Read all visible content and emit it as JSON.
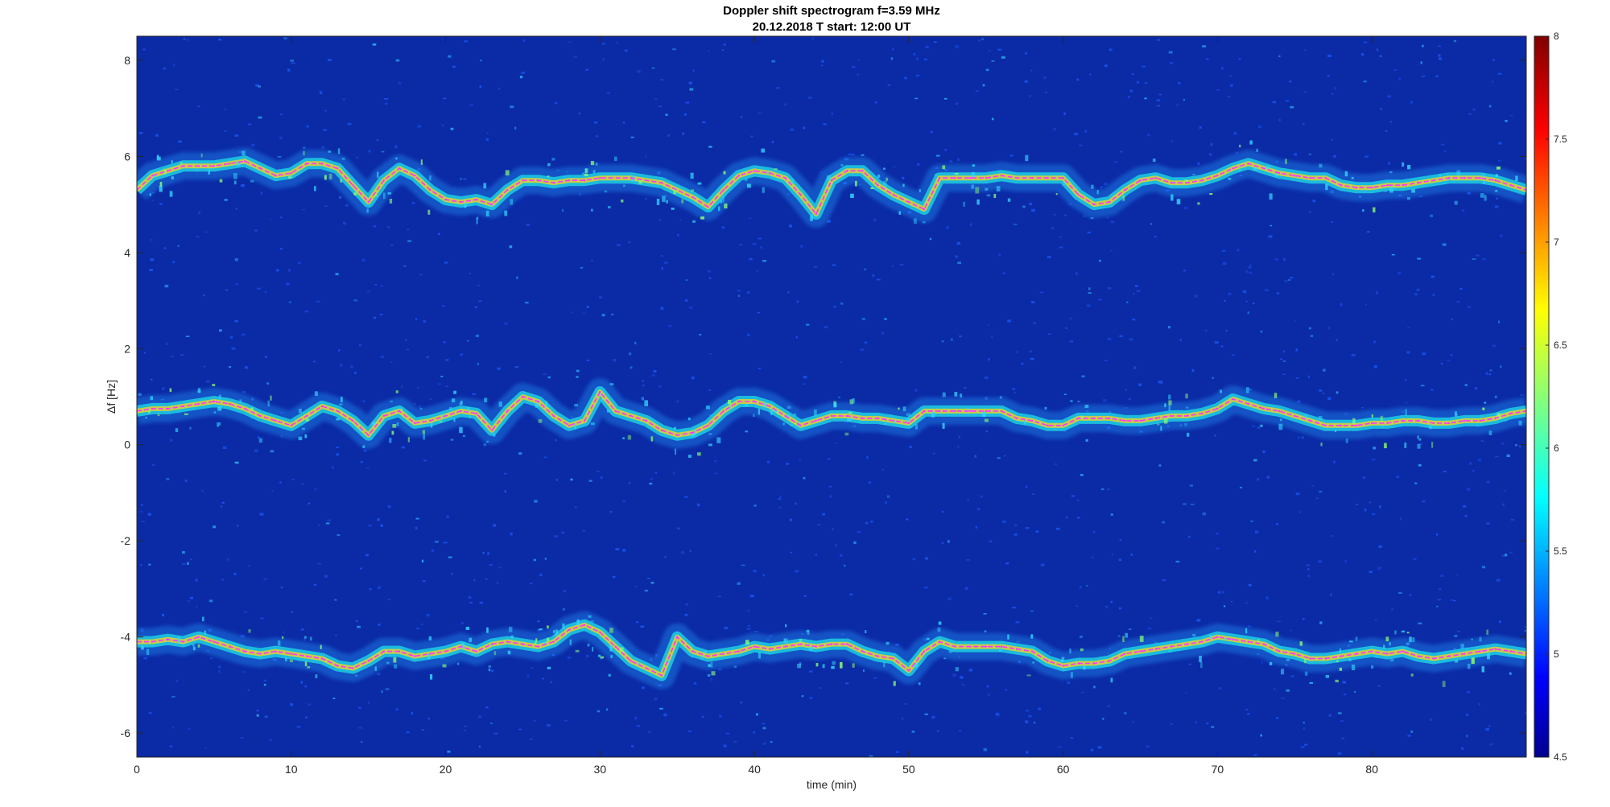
{
  "chart_data": {
    "type": "heatmap",
    "title": "Doppler shift spectrogram f=3.59 MHz",
    "subtitle": "20.12.2018   T start: 12:00 UT",
    "xlabel": "time (min)",
    "ylabel": "Δf [Hz]",
    "xlim": [
      0,
      90
    ],
    "ylim": [
      -6.5,
      8.5
    ],
    "x_ticks": [
      0,
      10,
      20,
      30,
      40,
      50,
      60,
      70,
      80
    ],
    "y_ticks": [
      -6,
      -4,
      -2,
      0,
      2,
      4,
      6,
      8
    ],
    "colorbar": {
      "colormap": "jet",
      "range": [
        4.5,
        8
      ],
      "ticks": [
        "4.5",
        "5",
        "5.5",
        "6",
        "6.5",
        "7",
        "7.5",
        "8"
      ]
    },
    "background_color": "#0b2aa6",
    "trace_color": "#ff33ff",
    "series": [
      {
        "band": "upper",
        "x": [
          0,
          1,
          2,
          3,
          4,
          5,
          6,
          7,
          8,
          9,
          10,
          11,
          12,
          13,
          14,
          15,
          16,
          17,
          18,
          19,
          20,
          21,
          22,
          23,
          24,
          25,
          26,
          27,
          28,
          29,
          30,
          32,
          34,
          36,
          37,
          38,
          39,
          40,
          41,
          42,
          43,
          44,
          45,
          46,
          47,
          48,
          49,
          50,
          51,
          52,
          53,
          54,
          55,
          56,
          57,
          58,
          59,
          60,
          61,
          62,
          63,
          64,
          65,
          66,
          67,
          68,
          69,
          70,
          71,
          72,
          73,
          74,
          75,
          76,
          77,
          78,
          79,
          80,
          81,
          82,
          83,
          84,
          85,
          86,
          87,
          88,
          89,
          90
        ],
        "y": [
          5.3,
          5.6,
          5.7,
          5.8,
          5.8,
          5.8,
          5.85,
          5.9,
          5.75,
          5.6,
          5.65,
          5.85,
          5.85,
          5.75,
          5.4,
          5.05,
          5.5,
          5.75,
          5.6,
          5.3,
          5.1,
          5.05,
          5.1,
          5.0,
          5.3,
          5.5,
          5.5,
          5.45,
          5.5,
          5.5,
          5.55,
          5.55,
          5.45,
          5.15,
          4.95,
          5.3,
          5.6,
          5.7,
          5.65,
          5.55,
          5.2,
          4.8,
          5.5,
          5.7,
          5.7,
          5.4,
          5.2,
          5.05,
          4.9,
          5.55,
          5.55,
          5.55,
          5.55,
          5.6,
          5.55,
          5.55,
          5.55,
          5.55,
          5.2,
          5.0,
          5.05,
          5.3,
          5.5,
          5.55,
          5.45,
          5.45,
          5.5,
          5.6,
          5.75,
          5.85,
          5.75,
          5.65,
          5.6,
          5.55,
          5.55,
          5.4,
          5.35,
          5.35,
          5.4,
          5.4,
          5.45,
          5.5,
          5.55,
          5.55,
          5.55,
          5.5,
          5.4,
          5.3
        ]
      },
      {
        "band": "middle",
        "x": [
          0,
          1,
          2,
          3,
          4,
          5,
          6,
          7,
          8,
          9,
          10,
          11,
          12,
          13,
          14,
          15,
          16,
          17,
          18,
          19,
          20,
          21,
          22,
          23,
          24,
          25,
          26,
          27,
          28,
          29,
          30,
          31,
          32,
          33,
          34,
          35,
          36,
          37,
          38,
          39,
          40,
          41,
          42,
          43,
          44,
          45,
          46,
          47,
          48,
          49,
          50,
          51,
          52,
          53,
          54,
          55,
          56,
          57,
          58,
          59,
          60,
          61,
          62,
          63,
          64,
          65,
          66,
          67,
          68,
          69,
          70,
          71,
          72,
          73,
          74,
          75,
          76,
          77,
          78,
          79,
          80,
          81,
          82,
          83,
          84,
          85,
          86,
          87,
          88,
          89,
          90
        ],
        "y": [
          0.7,
          0.75,
          0.75,
          0.8,
          0.85,
          0.9,
          0.85,
          0.75,
          0.6,
          0.5,
          0.4,
          0.6,
          0.8,
          0.7,
          0.5,
          0.2,
          0.6,
          0.7,
          0.45,
          0.5,
          0.6,
          0.7,
          0.65,
          0.3,
          0.7,
          1.0,
          0.9,
          0.6,
          0.4,
          0.5,
          1.1,
          0.7,
          0.6,
          0.5,
          0.3,
          0.2,
          0.25,
          0.4,
          0.7,
          0.9,
          0.9,
          0.8,
          0.6,
          0.4,
          0.5,
          0.6,
          0.6,
          0.55,
          0.55,
          0.5,
          0.45,
          0.7,
          0.7,
          0.7,
          0.7,
          0.7,
          0.7,
          0.55,
          0.5,
          0.4,
          0.4,
          0.55,
          0.55,
          0.55,
          0.5,
          0.5,
          0.55,
          0.6,
          0.6,
          0.65,
          0.75,
          0.95,
          0.85,
          0.75,
          0.7,
          0.6,
          0.5,
          0.4,
          0.4,
          0.4,
          0.45,
          0.45,
          0.5,
          0.5,
          0.45,
          0.45,
          0.5,
          0.5,
          0.55,
          0.65,
          0.7
        ]
      },
      {
        "band": "lower",
        "x": [
          0,
          1,
          2,
          3,
          4,
          5,
          6,
          7,
          8,
          9,
          10,
          11,
          12,
          13,
          14,
          15,
          16,
          17,
          18,
          19,
          20,
          21,
          22,
          23,
          24,
          25,
          26,
          27,
          28,
          29,
          30,
          31,
          32,
          33,
          34,
          35,
          36,
          37,
          38,
          39,
          40,
          41,
          42,
          43,
          44,
          45,
          46,
          47,
          48,
          49,
          50,
          51,
          52,
          53,
          54,
          55,
          56,
          57,
          58,
          59,
          60,
          61,
          62,
          63,
          64,
          65,
          66,
          67,
          68,
          69,
          70,
          71,
          72,
          73,
          74,
          75,
          76,
          77,
          78,
          79,
          80,
          81,
          82,
          83,
          84,
          85,
          86,
          87,
          88,
          89,
          90
        ],
        "y": [
          -4.1,
          -4.1,
          -4.05,
          -4.1,
          -4.0,
          -4.1,
          -4.2,
          -4.3,
          -4.35,
          -4.3,
          -4.35,
          -4.4,
          -4.45,
          -4.6,
          -4.65,
          -4.5,
          -4.3,
          -4.3,
          -4.4,
          -4.35,
          -4.3,
          -4.2,
          -4.3,
          -4.15,
          -4.1,
          -4.15,
          -4.2,
          -4.1,
          -3.85,
          -3.75,
          -3.9,
          -4.2,
          -4.5,
          -4.65,
          -4.8,
          -4.0,
          -4.3,
          -4.4,
          -4.35,
          -4.3,
          -4.2,
          -4.25,
          -4.2,
          -4.15,
          -4.2,
          -4.15,
          -4.15,
          -4.3,
          -4.4,
          -4.45,
          -4.7,
          -4.3,
          -4.1,
          -4.2,
          -4.2,
          -4.2,
          -4.2,
          -4.25,
          -4.3,
          -4.5,
          -4.6,
          -4.55,
          -4.55,
          -4.5,
          -4.35,
          -4.3,
          -4.25,
          -4.2,
          -4.15,
          -4.1,
          -4.0,
          -4.05,
          -4.1,
          -4.15,
          -4.3,
          -4.35,
          -4.45,
          -4.45,
          -4.4,
          -4.35,
          -4.3,
          -4.35,
          -4.3,
          -4.4,
          -4.45,
          -4.4,
          -4.35,
          -4.3,
          -4.25,
          -4.3,
          -4.35
        ]
      }
    ]
  }
}
